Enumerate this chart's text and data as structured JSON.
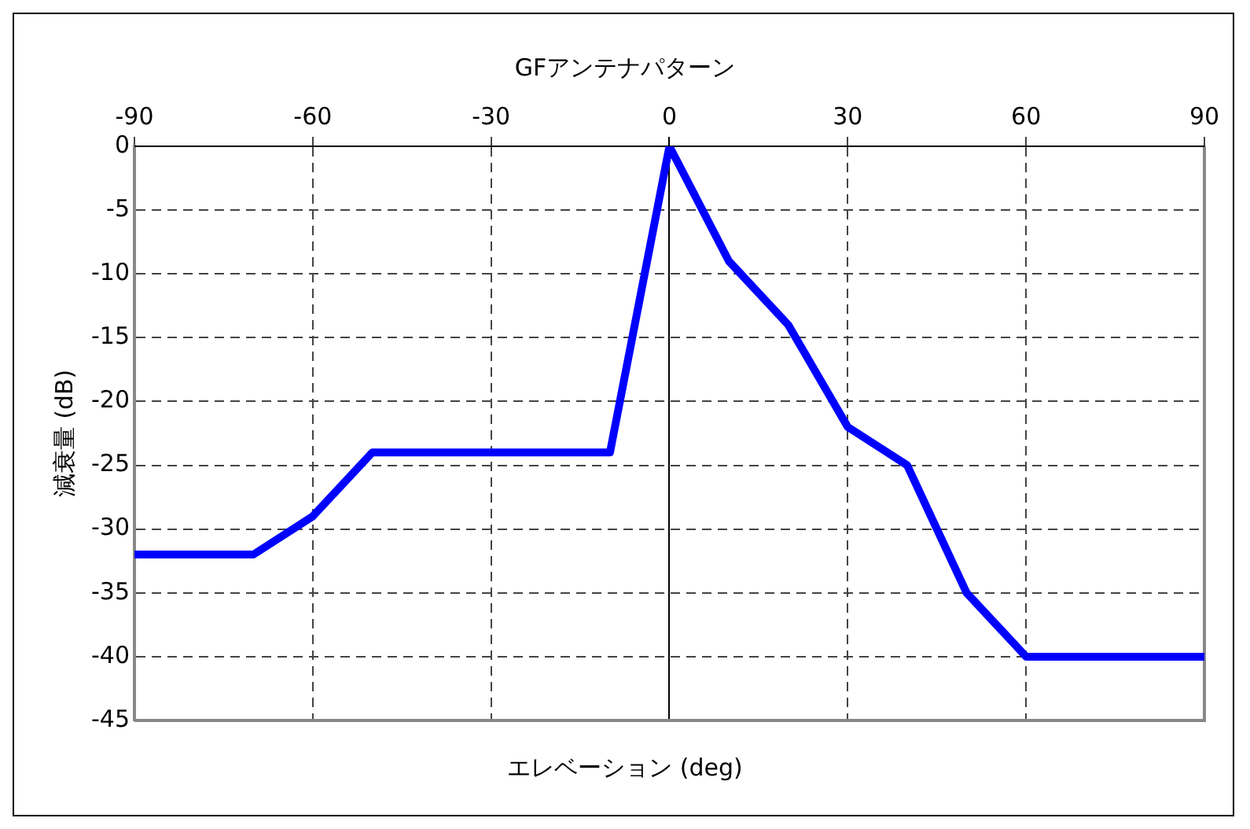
{
  "chart_data": {
    "type": "line",
    "title": "GFアンテナパターン",
    "xlabel": "エレベーション (deg)",
    "ylabel": "減衰量 (dB)",
    "x": [
      -90,
      -70,
      -60,
      -50,
      -10,
      0,
      10,
      20,
      30,
      40,
      50,
      60,
      90
    ],
    "series": [
      {
        "color": "#0000ff",
        "values": [
          -32,
          -32,
          -29,
          -24,
          -24,
          0,
          -9,
          -14,
          -22,
          -25,
          -35,
          -40,
          -40
        ]
      }
    ],
    "xlim": [
      -90,
      90
    ],
    "xticks": [
      -90,
      -60,
      -30,
      0,
      30,
      60,
      90
    ],
    "ylim": [
      -45,
      0
    ],
    "yticks": [
      -45,
      -40,
      -35,
      -30,
      -25,
      -20,
      -15,
      -10,
      -5,
      0
    ],
    "grid": true,
    "legend": false,
    "marker": "none",
    "line_style": "solid"
  }
}
